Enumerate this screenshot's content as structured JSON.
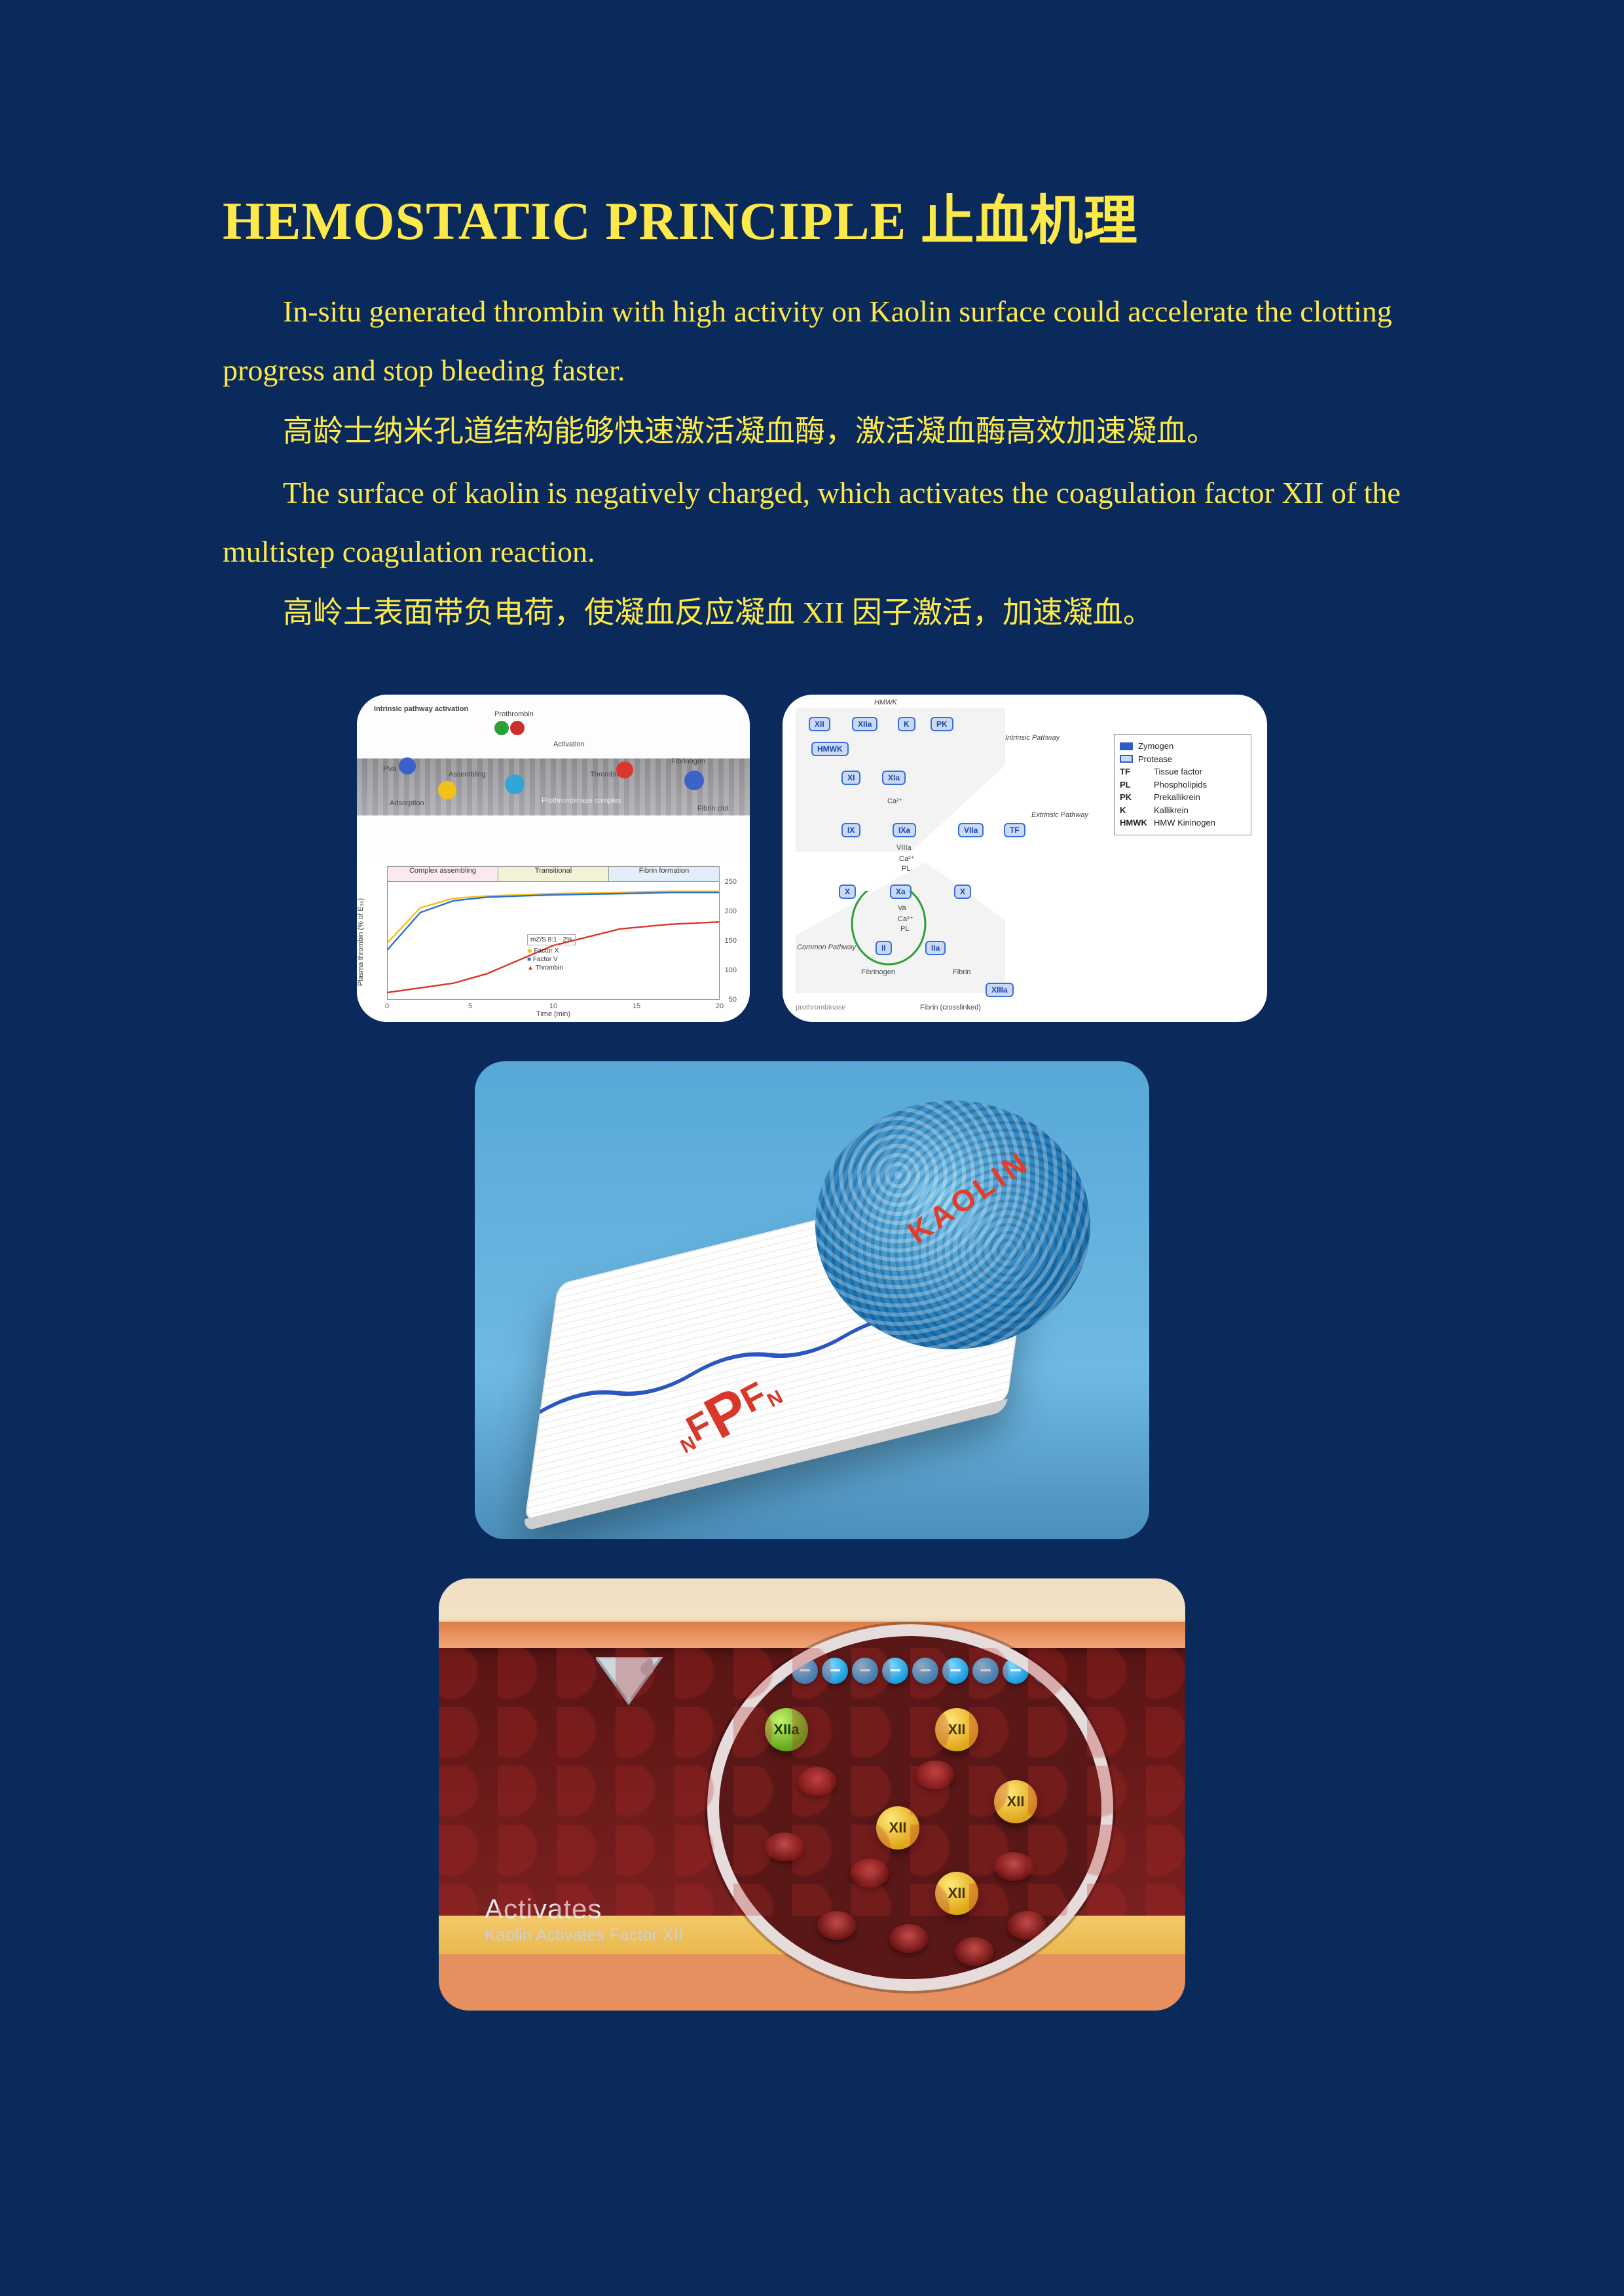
{
  "title": "HEMOSTATIC PRINCIPLE  止血机理",
  "paragraphs": {
    "p1_en": "In-situ generated thrombin with high activity on Kaolin surface could accelerate the clotting progress and stop bleeding faster.",
    "p1_zh": "高龄士纳米孔道结构能够快速激活凝血酶，激活凝血酶高效加速凝血。",
    "p2_en": "The surface of kaolin is negatively charged, which activates the coagulation factor XII of the multistep coagulation reaction.",
    "p2_zh": "高岭土表面带负电荷，使凝血反应凝血 XII 因子激活，加速凝血。"
  },
  "colors": {
    "page_bg": "#0b2a5c",
    "text": "#fde94a",
    "card_bg": "#ffffff",
    "accent_red": "#d8372a",
    "blue_node": "#3b6fd8"
  },
  "fig1": {
    "top_labels": {
      "tl": "Intrinsic pathway activation",
      "proth": "Prothrombin",
      "act": "Activation",
      "pva": "PVa",
      "assembling": "Assembling",
      "thrombin": "Thrombin",
      "fibrinogen": "Fibrinogen",
      "fibrin": "Fibrin clot",
      "compl": "Prothrombinase complex",
      "adsorption": "Adsorption"
    },
    "bottom": {
      "phase1": "Complex assembling",
      "phase2": "Transitional",
      "phase3": "Fibrin formation",
      "ylabel": "Plasma thrombin (% of E₅₀)",
      "y2label": "",
      "xlabel": "Time (min)",
      "x_ticks": [
        0,
        5,
        10,
        15,
        20
      ],
      "ylim": [
        0,
        100
      ],
      "y2_ticks": [
        50,
        100,
        150,
        200,
        250
      ],
      "legend": {
        "a": "Factor X",
        "b": "Factor V",
        "c": "Thrombin",
        "box": "mZ/S 8:1 · 2%"
      },
      "series": {
        "yellow": {
          "color": "#f2c21a",
          "marker": "diamond",
          "y": [
            48,
            78,
            86,
            88,
            90,
            91,
            92,
            92
          ]
        },
        "blue": {
          "color": "#2c6fd6",
          "marker": "square",
          "y": [
            42,
            74,
            84,
            87,
            89,
            90,
            91,
            91
          ]
        },
        "red": {
          "color": "#d8372a",
          "marker": "triangle",
          "y": [
            6,
            10,
            14,
            22,
            46,
            60,
            64,
            66
          ]
        }
      },
      "x_points": [
        0,
        2,
        4,
        6,
        10,
        14,
        17,
        20
      ]
    }
  },
  "fig2": {
    "header": "HMWK",
    "track_labels": {
      "intrinsic": "Intrinsic Pathway",
      "extrinsic": "Extrinsic Pathway",
      "common": "Common Pathway"
    },
    "nodes": {
      "XII": "XII",
      "XIIa": "XIIa",
      "K": "K",
      "PK": "PK",
      "HMWK": "HMWK",
      "XI": "XI",
      "XIa": "XIa",
      "IX": "IX",
      "IXa": "IXa",
      "VIIa": "VIIa",
      "TF": "TF",
      "X_l": "X",
      "X_r": "X",
      "Xa": "Xa",
      "Ca": "Ca²⁺",
      "PL": "PL",
      "VIIIa": "VIIIa",
      "II": "II",
      "IIa": "IIa",
      "Va": "Va",
      "Fibrinogen": "Fibrinogen",
      "Fibrin": "Fibrin",
      "XIIIa": "XIIIa",
      "crosslinked": "Fibrin (crosslinked)",
      "prothrombinase": "prothrombinase"
    },
    "legend": [
      {
        "swatch": "#2e5cc5",
        "label": "Zymogen"
      },
      {
        "swatch": "#c9d9f6",
        "label": "Protease",
        "border": "#2e5cc5"
      },
      {
        "k": "TF",
        "v": "Tissue factor"
      },
      {
        "k": "PL",
        "v": "Phospholipids"
      },
      {
        "k": "PK",
        "v": "Prekallikrein"
      },
      {
        "k": "K",
        "v": "Kallikrein"
      },
      {
        "k": "HMWK",
        "v": "HMW Kininogen"
      }
    ]
  },
  "fig3": {
    "kaolin_label": "KAOLIN",
    "npfn": {
      "n1": "N",
      "f1": "F",
      "p": "P",
      "f2": "F",
      "n2": "N"
    },
    "gauze_wave_color": "#2b55c2"
  },
  "fig4": {
    "caption_h": "Activates",
    "caption_s": "Kaolin Activates Factor XII",
    "neg": "−",
    "factors": {
      "XIIa": "XIIa",
      "XII": "XII"
    }
  }
}
